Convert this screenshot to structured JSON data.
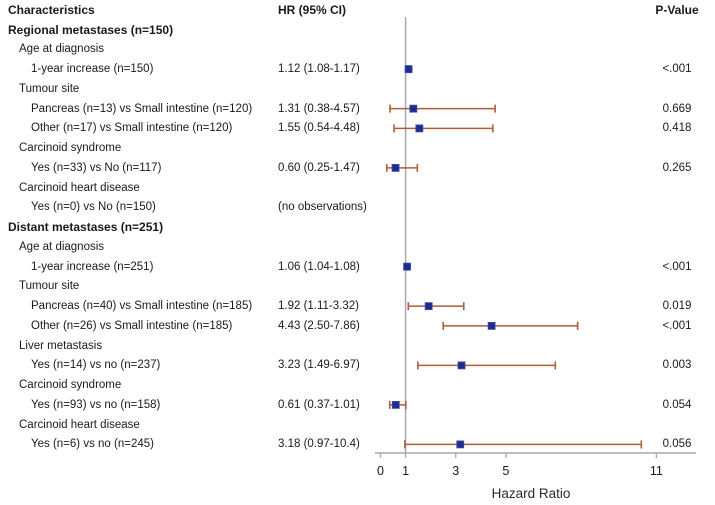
{
  "chart_data": {
    "type": "forest",
    "columns": {
      "characteristics": "Characteristics",
      "hr_ci": "HR (95% CI)",
      "p_value": "P-Value"
    },
    "xlabel": "Hazard Ratio",
    "x_ticks": [
      0,
      1,
      3,
      5,
      11
    ],
    "x_range": [
      0,
      11.7
    ],
    "reference_line": 1,
    "grid": false,
    "legend": "none",
    "colors": {
      "ci_bar": "#b05c38",
      "marker": "#1f2d8a",
      "marker_edge": "#3a4db5",
      "axis_line": "#a9a9a9",
      "text": "#1a1a1a"
    },
    "rows": [
      {
        "label": "Regional metastases (n=150)",
        "indent": 0,
        "bold": true
      },
      {
        "label": "Age at diagnosis",
        "indent": 1
      },
      {
        "label": "1-year increase (n=150)",
        "indent": 2,
        "hr_text": "1.12 (1.08-1.17)",
        "p": "<.001",
        "est": 1.12,
        "lo": 1.08,
        "hi": 1.17
      },
      {
        "label": "Tumour site",
        "indent": 1
      },
      {
        "label": "Pancreas (n=13) vs Small intestine (n=120)",
        "indent": 2,
        "hr_text": "1.31 (0.38-4.57)",
        "p": "0.669",
        "est": 1.31,
        "lo": 0.38,
        "hi": 4.57
      },
      {
        "label": "Other (n=17) vs Small intestine (n=120)",
        "indent": 2,
        "hr_text": "1.55 (0.54-4.48)",
        "p": "0.418",
        "est": 1.55,
        "lo": 0.54,
        "hi": 4.48
      },
      {
        "label": "Carcinoid syndrome",
        "indent": 1
      },
      {
        "label": "Yes (n=33) vs No (n=117)",
        "indent": 2,
        "hr_text": "0.60 (0.25-1.47)",
        "p": "0.265",
        "est": 0.6,
        "lo": 0.25,
        "hi": 1.47
      },
      {
        "label": "Carcinoid heart disease",
        "indent": 1
      },
      {
        "label": "Yes (n=0) vs No (n=150)",
        "indent": 2,
        "hr_text": "(no observations)"
      },
      {
        "label": "Distant metastases (n=251)",
        "indent": 0,
        "bold": true
      },
      {
        "label": "Age at diagnosis",
        "indent": 1
      },
      {
        "label": "1-year increase (n=251)",
        "indent": 2,
        "hr_text": "1.06 (1.04-1.08)",
        "p": "<.001",
        "est": 1.06,
        "lo": 1.04,
        "hi": 1.08
      },
      {
        "label": "Tumour site",
        "indent": 1
      },
      {
        "label": "Pancreas (n=40) vs Small intestine (n=185)",
        "indent": 2,
        "hr_text": "1.92 (1.11-3.32)",
        "p": "0.019",
        "est": 1.92,
        "lo": 1.11,
        "hi": 3.32
      },
      {
        "label": "Other (n=26) vs Small intestine (n=185)",
        "indent": 2,
        "hr_text": "4.43 (2.50-7.86)",
        "p": "<.001",
        "est": 4.43,
        "lo": 2.5,
        "hi": 7.86
      },
      {
        "label": "Liver metastasis",
        "indent": 1
      },
      {
        "label": "Yes (n=14) vs no (n=237)",
        "indent": 2,
        "hr_text": "3.23 (1.49-6.97)",
        "p": "0.003",
        "est": 3.23,
        "lo": 1.49,
        "hi": 6.97
      },
      {
        "label": "Carcinoid syndrome",
        "indent": 1
      },
      {
        "label": "Yes (n=93) vs no (n=158)",
        "indent": 2,
        "hr_text": "0.61 (0.37-1.01)",
        "p": "0.054",
        "est": 0.61,
        "lo": 0.37,
        "hi": 1.01
      },
      {
        "label": "Carcinoid heart disease",
        "indent": 1
      },
      {
        "label": "Yes (n=6) vs no (n=245)",
        "indent": 2,
        "hr_text": "3.18 (0.97-10.4)",
        "p": "0.056",
        "est": 3.18,
        "lo": 0.97,
        "hi": 10.4
      }
    ]
  }
}
